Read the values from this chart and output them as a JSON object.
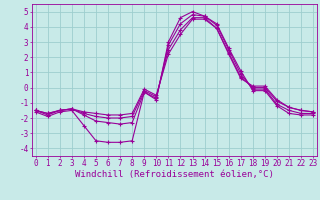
{
  "background_color": "#c8eae8",
  "grid_color": "#9ecece",
  "line_color": "#990099",
  "marker": "+",
  "marker_size": 3,
  "marker_lw": 0.8,
  "line_width": 0.8,
  "xlabel": "Windchill (Refroidissement éolien,°C)",
  "xlabel_fontsize": 6.5,
  "tick_fontsize": 5.5,
  "yticks": [
    -4,
    -3,
    -2,
    -1,
    0,
    1,
    2,
    3,
    4,
    5
  ],
  "xticks": [
    0,
    1,
    2,
    3,
    4,
    5,
    6,
    7,
    8,
    9,
    10,
    11,
    12,
    13,
    14,
    15,
    16,
    17,
    18,
    19,
    20,
    21,
    22,
    23
  ],
  "xlim": [
    -0.3,
    23.3
  ],
  "ylim": [
    -4.5,
    5.5
  ],
  "series": [
    [
      -1.6,
      -1.9,
      -1.6,
      -1.5,
      -2.5,
      -3.5,
      -3.6,
      -3.6,
      -3.5,
      -0.3,
      -0.8,
      3.0,
      4.6,
      5.0,
      4.7,
      4.2,
      2.6,
      1.1,
      -0.2,
      -0.2,
      -1.2,
      -1.7,
      -1.8,
      -1.8
    ],
    [
      -1.5,
      -1.8,
      -1.5,
      -1.4,
      -1.8,
      -2.2,
      -2.3,
      -2.4,
      -2.3,
      -0.3,
      -0.7,
      2.8,
      4.2,
      4.8,
      4.7,
      4.1,
      2.5,
      0.9,
      -0.1,
      -0.1,
      -1.1,
      -1.5,
      -1.7,
      -1.7
    ],
    [
      -1.5,
      -1.7,
      -1.5,
      -1.4,
      -1.7,
      -1.9,
      -2.0,
      -2.0,
      -1.9,
      -0.2,
      -0.6,
      2.5,
      3.8,
      4.6,
      4.6,
      3.9,
      2.3,
      0.7,
      0.0,
      0.0,
      -0.9,
      -1.3,
      -1.5,
      -1.6
    ],
    [
      -1.5,
      -1.7,
      -1.5,
      -1.4,
      -1.6,
      -1.7,
      -1.8,
      -1.8,
      -1.7,
      -0.1,
      -0.5,
      2.2,
      3.5,
      4.5,
      4.5,
      3.9,
      2.2,
      0.6,
      0.1,
      0.1,
      -0.8,
      -1.3,
      -1.5,
      -1.6
    ]
  ]
}
